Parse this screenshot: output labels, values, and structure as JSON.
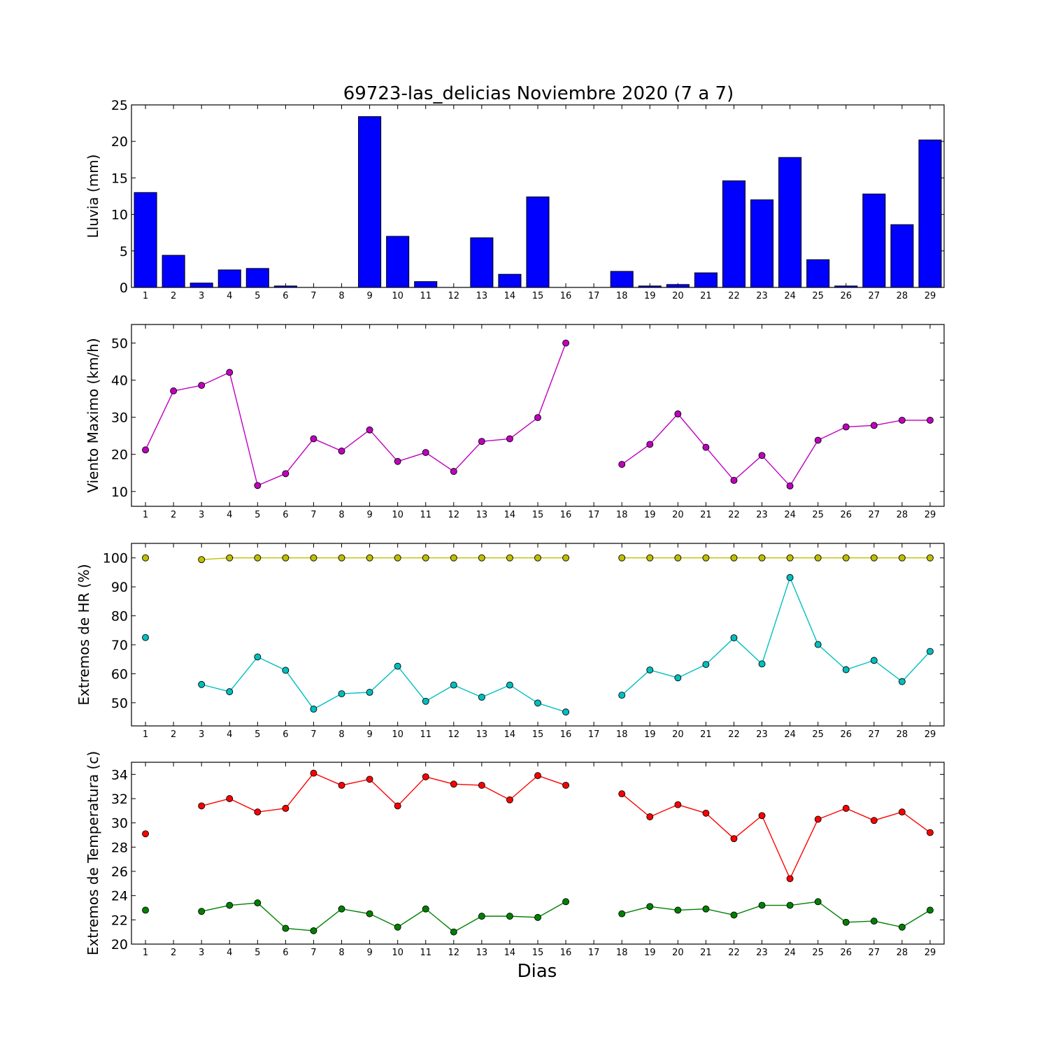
{
  "title": "69723-las_delicias Noviembre 2020  (7 a 7)",
  "xlabel": "Dias",
  "days": [
    1,
    2,
    3,
    4,
    5,
    6,
    7,
    8,
    9,
    10,
    11,
    12,
    13,
    14,
    15,
    16,
    17,
    18,
    19,
    20,
    21,
    22,
    23,
    24,
    25,
    26,
    27,
    28,
    29
  ],
  "chart_data": [
    {
      "type": "bar",
      "ylabel": "Lluvia (mm)",
      "ylim": [
        0,
        25
      ],
      "yticks": [
        0,
        5,
        10,
        15,
        20,
        25
      ],
      "grid": false,
      "series": [
        {
          "color": "#0000ff",
          "values": [
            13.0,
            4.4,
            0.6,
            2.4,
            2.6,
            0.2,
            0.0,
            0.0,
            23.4,
            7.0,
            0.8,
            0.0,
            6.8,
            1.8,
            12.4,
            0.0,
            0.0,
            2.2,
            0.2,
            0.4,
            2.0,
            14.6,
            12.0,
            17.8,
            3.8,
            0.2,
            12.8,
            8.6,
            20.2
          ]
        }
      ]
    },
    {
      "type": "line",
      "ylabel": "Viento Maximo (km/h)",
      "ylim": [
        6,
        55
      ],
      "yticks": [
        10,
        20,
        30,
        40,
        50
      ],
      "grid": false,
      "series": [
        {
          "color": "#bf00bf",
          "values": [
            21.2,
            37.1,
            38.6,
            42.1,
            11.6,
            14.8,
            24.2,
            20.9,
            26.6,
            18.1,
            20.5,
            15.4,
            23.5,
            24.2,
            29.9,
            50.0,
            null,
            17.3,
            22.7,
            30.9,
            21.9,
            13.0,
            19.7,
            11.5,
            23.8,
            27.4,
            27.8,
            29.2,
            29.2
          ]
        }
      ]
    },
    {
      "type": "line",
      "ylabel": "Extremos de HR (%)",
      "ylim": [
        42,
        105
      ],
      "yticks": [
        50,
        60,
        70,
        80,
        90,
        100
      ],
      "grid": false,
      "series": [
        {
          "color": "#bfbf00",
          "values": [
            100,
            null,
            99.4,
            100,
            100,
            100,
            100,
            100,
            100,
            100,
            100,
            100,
            100,
            100,
            100,
            100,
            null,
            100,
            100,
            100,
            100,
            100,
            100,
            100,
            100,
            100,
            100,
            100,
            100
          ]
        },
        {
          "color": "#00bfbf",
          "values": [
            72.5,
            null,
            56.3,
            53.8,
            65.8,
            61.2,
            47.8,
            53.1,
            53.6,
            62.6,
            50.5,
            56.1,
            51.9,
            56.1,
            49.9,
            46.8,
            null,
            52.6,
            61.3,
            58.6,
            63.2,
            72.4,
            63.4,
            93.2,
            70.1,
            61.4,
            64.6,
            57.3,
            67.7
          ]
        }
      ]
    },
    {
      "type": "line",
      "ylabel": "Extremos de Temperatura (c)",
      "ylim": [
        20,
        35
      ],
      "yticks": [
        20,
        22,
        24,
        26,
        28,
        30,
        32,
        34
      ],
      "grid": false,
      "series": [
        {
          "color": "#ff0000",
          "values": [
            29.1,
            null,
            31.4,
            32.0,
            30.9,
            31.2,
            34.1,
            33.1,
            33.6,
            31.4,
            33.8,
            33.2,
            33.1,
            31.9,
            33.9,
            33.1,
            null,
            32.4,
            30.5,
            31.5,
            30.8,
            28.7,
            30.6,
            25.4,
            30.3,
            31.2,
            30.2,
            30.9,
            29.2
          ]
        },
        {
          "color": "#008000",
          "values": [
            22.8,
            null,
            22.7,
            23.2,
            23.4,
            21.3,
            21.1,
            22.9,
            22.5,
            21.4,
            22.9,
            21.0,
            22.3,
            22.3,
            22.2,
            23.5,
            null,
            22.5,
            23.1,
            22.8,
            22.9,
            22.4,
            23.2,
            23.2,
            23.5,
            21.8,
            21.9,
            21.4,
            22.8
          ]
        }
      ]
    }
  ]
}
